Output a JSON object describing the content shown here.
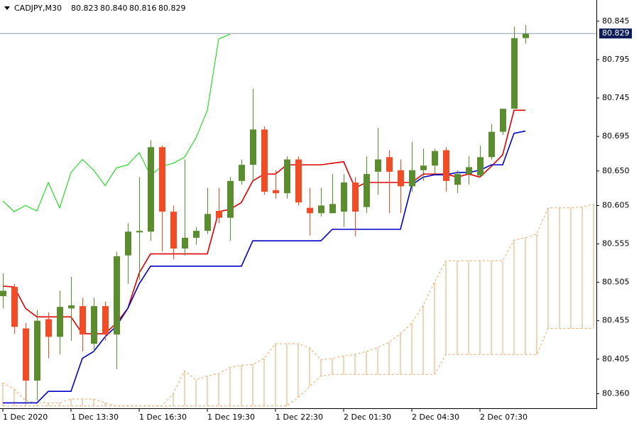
{
  "chart_data": {
    "type": "candlestick",
    "title": "CADJPY,M30",
    "header_values": [
      80.823,
      {
        "value": 80.84,
        "label": "80.840"
      },
      80.816,
      80.829
    ],
    "categories": [
      "1 Dec 2020",
      null,
      null,
      null,
      null,
      null,
      "1 Dec 13:30",
      null,
      null,
      null,
      null,
      null,
      "1 Dec 16:30",
      null,
      null,
      null,
      null,
      null,
      "1 Dec 19:30",
      null,
      null,
      null,
      null,
      null,
      "1 Dec 22:30",
      null,
      null,
      null,
      null,
      null,
      "2 Dec 01:30",
      null,
      null,
      null,
      null,
      null,
      "2 Dec 04:30",
      null,
      null,
      null,
      null,
      null,
      "2 Dec 07:30",
      null,
      null,
      null,
      null,
      null,
      null,
      null,
      null,
      null,
      null
    ],
    "open": [
      80.487,
      80.499,
      80.445,
      80.377,
      80.457,
      80.434,
      80.471,
      80.474,
      80.425,
      80.474,
      80.437,
      80.54,
      80.57,
      80.571,
      80.681,
      80.597,
      80.549,
      80.563,
      80.572,
      80.598,
      80.589,
      80.637,
      80.658,
      80.704,
      80.625,
      80.621,
      80.665,
      80.602,
      80.595,
      80.595,
      80.597,
      80.635,
      80.603,
      80.649,
      80.668,
      80.651,
      80.63,
      80.651,
      80.657,
      80.677,
      80.632,
      80.646,
      80.644,
      80.668,
      80.701,
      80.731,
      80.823,
      null,
      null,
      null,
      null,
      null,
      null
    ],
    "high": [
      80.517,
      80.503,
      80.452,
      80.469,
      80.466,
      80.494,
      80.512,
      80.485,
      80.485,
      80.48,
      80.545,
      80.582,
      80.642,
      80.69,
      80.683,
      80.605,
      80.665,
      80.577,
      80.628,
      80.628,
      80.642,
      80.665,
      80.757,
      80.708,
      80.651,
      80.669,
      80.669,
      80.628,
      80.628,
      80.646,
      80.646,
      80.642,
      80.669,
      80.706,
      80.677,
      80.665,
      80.688,
      80.679,
      80.679,
      80.681,
      80.651,
      80.669,
      80.683,
      80.711,
      80.731,
      80.838,
      80.84,
      null,
      null,
      null,
      null,
      null,
      null
    ],
    "low": [
      80.471,
      80.438,
      80.351,
      80.351,
      80.406,
      80.411,
      80.429,
      80.415,
      80.415,
      80.429,
      80.392,
      80.503,
      80.508,
      80.559,
      80.545,
      80.535,
      80.54,
      80.554,
      80.568,
      80.582,
      80.559,
      80.632,
      80.637,
      80.619,
      80.614,
      80.614,
      80.605,
      80.566,
      80.591,
      80.595,
      80.577,
      80.565,
      80.595,
      80.619,
      80.595,
      80.595,
      80.623,
      80.637,
      80.646,
      80.623,
      80.621,
      80.632,
      80.642,
      80.665,
      80.697,
      80.731,
      80.816,
      null,
      null,
      null,
      null,
      null,
      null
    ],
    "close": [
      80.494,
      80.447,
      80.377,
      80.455,
      80.434,
      80.473,
      80.475,
      80.437,
      80.474,
      80.437,
      80.539,
      80.571,
      80.572,
      80.681,
      80.597,
      80.549,
      80.563,
      80.572,
      80.594,
      80.589,
      80.637,
      80.658,
      80.704,
      80.623,
      80.621,
      80.665,
      80.609,
      80.595,
      80.605,
      80.607,
      80.635,
      80.597,
      80.646,
      80.665,
      80.649,
      80.63,
      80.651,
      80.657,
      80.676,
      80.637,
      80.646,
      80.655,
      80.668,
      80.701,
      80.731,
      80.823,
      80.829,
      null,
      null,
      null,
      null,
      null,
      null
    ],
    "up_color": "#5b8c30",
    "down_color": "#f24c26",
    "lines": [
      {
        "color": "#e00000",
        "values": [
          80.5,
          80.499,
          80.471,
          80.46,
          80.46,
          80.46,
          80.46,
          80.438,
          80.438,
          80.438,
          80.452,
          80.471,
          80.517,
          80.542,
          80.542,
          80.542,
          80.542,
          80.542,
          80.542,
          80.597,
          80.6,
          80.609,
          80.637,
          80.646,
          80.646,
          80.658,
          80.658,
          80.658,
          80.658,
          80.66,
          80.662,
          80.628,
          80.635,
          80.635,
          80.635,
          80.635,
          80.635,
          80.646,
          80.646,
          80.646,
          80.642,
          80.646,
          80.642,
          80.656,
          80.671,
          80.729,
          80.729,
          null,
          null,
          null,
          null,
          null,
          null
        ]
      },
      {
        "color": "#0000c8",
        "values": [
          80.348,
          80.348,
          80.348,
          80.348,
          80.363,
          80.363,
          80.363,
          80.406,
          80.415,
          80.434,
          80.448,
          80.471,
          80.503,
          80.526,
          80.526,
          80.526,
          80.526,
          80.526,
          80.526,
          80.526,
          80.526,
          80.526,
          80.559,
          80.559,
          80.559,
          80.559,
          80.559,
          80.559,
          80.559,
          80.574,
          80.574,
          80.574,
          80.574,
          80.574,
          80.574,
          80.574,
          80.632,
          80.642,
          80.645,
          80.645,
          80.648,
          80.648,
          80.651,
          80.658,
          80.658,
          80.699,
          80.702,
          null,
          null,
          null,
          null,
          null,
          null
        ]
      },
      {
        "color": "#00dd00",
        "values": [
          80.611,
          80.597,
          80.605,
          80.598,
          80.635,
          80.602,
          80.648,
          80.665,
          80.651,
          80.631,
          80.654,
          80.658,
          80.674,
          80.644,
          80.656,
          80.66,
          80.668,
          80.693,
          80.729,
          80.822,
          80.828,
          null,
          null,
          null,
          null,
          null,
          null,
          null,
          null,
          null,
          null,
          null,
          null,
          null,
          null,
          null,
          null,
          null,
          null,
          null,
          null,
          null,
          null,
          null,
          null,
          null,
          null,
          null,
          null,
          null,
          null,
          null,
          null
        ]
      }
    ],
    "cloud": {
      "color": "#f4a460",
      "span_a": [
        80.374,
        80.366,
        80.351,
        80.348,
        80.348,
        80.348,
        80.353,
        80.353,
        80.353,
        80.348,
        80.344,
        80.344,
        80.344,
        80.344,
        80.344,
        80.36,
        80.39,
        80.378,
        80.383,
        80.386,
        80.394,
        80.397,
        80.398,
        80.406,
        80.425,
        80.425,
        80.425,
        80.42,
        80.404,
        80.406,
        80.409,
        80.411,
        80.415,
        80.42,
        80.427,
        80.438,
        80.452,
        80.475,
        80.505,
        80.533,
        80.533,
        80.533,
        80.533,
        80.533,
        80.533,
        80.56,
        80.563,
        80.568,
        80.602,
        80.602,
        80.602,
        80.603,
        80.607
      ],
      "span_b": [
        80.344,
        80.344,
        80.344,
        80.344,
        80.344,
        80.344,
        80.344,
        80.344,
        80.344,
        80.344,
        80.344,
        80.344,
        80.344,
        80.344,
        80.344,
        80.344,
        80.344,
        80.344,
        80.344,
        80.344,
        80.344,
        80.344,
        80.344,
        80.344,
        80.344,
        80.344,
        80.355,
        80.369,
        80.383,
        80.385,
        80.385,
        80.385,
        80.385,
        80.385,
        80.385,
        80.385,
        80.385,
        80.385,
        80.385,
        80.411,
        80.411,
        80.411,
        80.411,
        80.411,
        80.411,
        80.411,
        80.411,
        80.411,
        80.445,
        80.445,
        80.445,
        80.445,
        80.445
      ]
    },
    "last_price": 80.829,
    "last_price_color": "#0c1d5a",
    "ylim": [
      80.341,
      80.868
    ],
    "yticks": [
      80.845,
      80.795,
      80.745,
      80.695,
      {
        "value": 80.65,
        "label": "80.650"
      },
      80.605,
      80.555,
      80.505,
      80.455,
      80.405,
      {
        "value": 80.36,
        "label": "80.360"
      }
    ]
  }
}
